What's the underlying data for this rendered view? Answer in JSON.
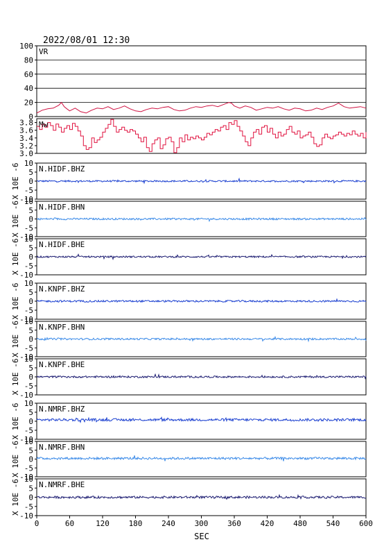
{
  "timestamp": "2022/08/01 12:30",
  "chart_data": {
    "type": "line",
    "xlabel": "SEC",
    "xlim": [
      0,
      600
    ],
    "x_ticks": [
      0,
      60,
      120,
      180,
      240,
      300,
      360,
      420,
      480,
      540,
      600
    ],
    "panels": [
      {
        "name": "VR",
        "ylim": [
          0,
          100
        ],
        "y_ticks": [
          0,
          20,
          40,
          60,
          80,
          100
        ],
        "grid": true,
        "color": "#d01040",
        "series_x": [
          0,
          10,
          20,
          30,
          40,
          45,
          50,
          55,
          60,
          70,
          80,
          90,
          100,
          110,
          120,
          130,
          140,
          150,
          160,
          170,
          180,
          190,
          200,
          210,
          220,
          230,
          240,
          250,
          260,
          270,
          280,
          290,
          300,
          310,
          320,
          330,
          340,
          350,
          355,
          360,
          370,
          380,
          390,
          400,
          410,
          420,
          430,
          440,
          450,
          460,
          470,
          480,
          490,
          500,
          510,
          520,
          530,
          540,
          550,
          560,
          570,
          580,
          590,
          600
        ],
        "series_y": [
          5,
          9,
          11,
          12,
          16,
          20,
          14,
          11,
          8,
          12,
          7,
          5,
          9,
          12,
          11,
          14,
          10,
          12,
          15,
          11,
          8,
          7,
          10,
          12,
          11,
          13,
          14,
          10,
          8,
          9,
          12,
          14,
          13,
          15,
          16,
          14,
          17,
          20,
          19,
          15,
          12,
          15,
          13,
          9,
          11,
          13,
          12,
          14,
          11,
          9,
          12,
          11,
          8,
          9,
          12,
          10,
          13,
          15,
          19,
          14,
          12,
          13,
          14,
          12
        ]
      },
      {
        "name": "Mw",
        "ylim": [
          3.0,
          3.9
        ],
        "y_ticks": [
          3.0,
          3.2,
          3.4,
          3.6,
          3.8
        ],
        "grid": false,
        "color": "#e0103e",
        "series_x": [
          0,
          5,
          10,
          15,
          20,
          25,
          30,
          35,
          40,
          45,
          50,
          55,
          60,
          65,
          70,
          75,
          80,
          85,
          90,
          95,
          100,
          105,
          110,
          115,
          120,
          125,
          130,
          135,
          140,
          145,
          150,
          155,
          160,
          165,
          170,
          175,
          180,
          185,
          190,
          195,
          200,
          205,
          210,
          215,
          220,
          225,
          230,
          235,
          240,
          245,
          250,
          255,
          260,
          265,
          270,
          275,
          280,
          285,
          290,
          295,
          300,
          305,
          310,
          315,
          320,
          325,
          330,
          335,
          340,
          345,
          350,
          355,
          360,
          365,
          370,
          375,
          380,
          385,
          390,
          395,
          400,
          405,
          410,
          415,
          420,
          425,
          430,
          435,
          440,
          445,
          450,
          455,
          460,
          465,
          470,
          475,
          480,
          485,
          490,
          495,
          500,
          505,
          510,
          515,
          520,
          525,
          530,
          535,
          540,
          545,
          550,
          555,
          560,
          565,
          570,
          575,
          580,
          585,
          590,
          595,
          600
        ],
        "series_y": [
          3.7,
          3.62,
          3.75,
          3.68,
          3.8,
          3.72,
          3.6,
          3.76,
          3.68,
          3.55,
          3.65,
          3.72,
          3.62,
          3.78,
          3.7,
          3.58,
          3.45,
          3.2,
          3.1,
          3.15,
          3.4,
          3.28,
          3.35,
          3.42,
          3.55,
          3.65,
          3.75,
          3.88,
          3.7,
          3.55,
          3.62,
          3.68,
          3.6,
          3.55,
          3.62,
          3.58,
          3.5,
          3.4,
          3.3,
          3.42,
          3.15,
          3.05,
          3.25,
          3.35,
          3.4,
          3.12,
          3.22,
          3.38,
          3.42,
          3.3,
          3.02,
          3.15,
          3.4,
          3.3,
          3.48,
          3.35,
          3.42,
          3.38,
          3.45,
          3.4,
          3.35,
          3.42,
          3.52,
          3.48,
          3.55,
          3.62,
          3.58,
          3.68,
          3.72,
          3.62,
          3.8,
          3.75,
          3.85,
          3.7,
          3.58,
          3.45,
          3.3,
          3.2,
          3.4,
          3.55,
          3.62,
          3.5,
          3.68,
          3.72,
          3.55,
          3.65,
          3.5,
          3.4,
          3.55,
          3.45,
          3.5,
          3.62,
          3.7,
          3.55,
          3.5,
          3.58,
          3.4,
          3.45,
          3.48,
          3.55,
          3.42,
          3.25,
          3.18,
          3.22,
          3.4,
          3.5,
          3.42,
          3.38,
          3.45,
          3.48,
          3.55,
          3.5,
          3.45,
          3.52,
          3.48,
          3.58,
          3.5,
          3.45,
          3.52,
          3.4,
          3.55
        ]
      },
      {
        "name": "N.HIDF.BHZ",
        "ylim": [
          -10,
          10
        ],
        "y_ticks": [
          -10,
          -5,
          0,
          5,
          10
        ],
        "color": "#1a3fd0",
        "noise_amp": 0.45,
        "baseline": 0
      },
      {
        "name": "N.HIDF.BHN",
        "ylim": [
          -10,
          10
        ],
        "y_ticks": [
          -10,
          -5,
          0,
          5,
          10
        ],
        "color": "#3a8ae8",
        "noise_amp": 0.5,
        "baseline": 0
      },
      {
        "name": "N.HIDF.BHE",
        "ylim": [
          -10,
          10
        ],
        "y_ticks": [
          -10,
          -5,
          0,
          5,
          10
        ],
        "color": "#1a1a70",
        "noise_amp": 0.45,
        "baseline": 0
      },
      {
        "name": "N.KNPF.BHZ",
        "ylim": [
          -10,
          10
        ],
        "y_ticks": [
          -10,
          -5,
          0,
          5,
          10
        ],
        "color": "#1a3fd0",
        "noise_amp": 0.5,
        "baseline": 0
      },
      {
        "name": "N.KNPF.BHN",
        "ylim": [
          -10,
          10
        ],
        "y_ticks": [
          -10,
          -5,
          0,
          5,
          10
        ],
        "color": "#3a8ae8",
        "noise_amp": 0.5,
        "baseline": 0
      },
      {
        "name": "N.KNPF.BHE",
        "ylim": [
          -10,
          10
        ],
        "y_ticks": [
          -10,
          -5,
          0,
          5,
          10
        ],
        "color": "#1a1a70",
        "noise_amp": 0.5,
        "baseline": 0
      },
      {
        "name": "N.NMRF.BHZ",
        "ylim": [
          -10,
          10
        ],
        "y_ticks": [
          -10,
          -5,
          0,
          5,
          10
        ],
        "color": "#1a3fd0",
        "noise_amp": 0.7,
        "baseline": 0.8
      },
      {
        "name": "N.NMRF.BHN",
        "ylim": [
          -10,
          10
        ],
        "y_ticks": [
          -10,
          -5,
          0,
          5,
          10
        ],
        "color": "#3a8ae8",
        "noise_amp": 0.65,
        "baseline": 0.4
      },
      {
        "name": "N.NMRF.BHE",
        "ylim": [
          -10,
          10
        ],
        "y_ticks": [
          -10,
          -5,
          0,
          5,
          10
        ],
        "color": "#1a1a70",
        "noise_amp": 0.6,
        "baseline": 0
      }
    ],
    "seismo_ylabel": "X 10E -6"
  }
}
